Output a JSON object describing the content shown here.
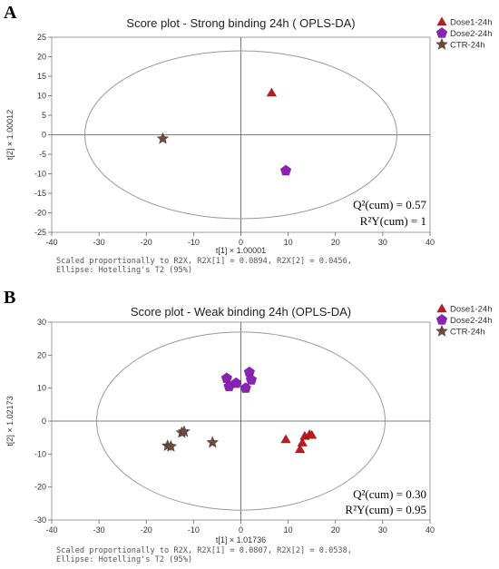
{
  "colors": {
    "dose1": "#c0191f",
    "dose2": "#8b22b8",
    "ctr": "#6b4b3e",
    "ellipse": "#9a9a9a",
    "zeroline": "#555555"
  },
  "chart_data": [
    {
      "type": "scatter",
      "panel": "A",
      "title": "Score plot - Strong binding 24h ( OPLS-DA)",
      "xlabel": "t[1] × 1.00001",
      "ylabel": "t[2] × 1.00012",
      "xlim": [
        -40,
        40
      ],
      "ylim": [
        -25,
        25
      ],
      "xticks": [
        -40,
        -30,
        -20,
        -10,
        0,
        10,
        20,
        30,
        40
      ],
      "yticks": [
        -25,
        -20,
        -15,
        -10,
        -5,
        0,
        5,
        10,
        15,
        20,
        25
      ],
      "grid": false,
      "legend_position": "top-right",
      "ellipse": {
        "cx": 0,
        "cy": 0,
        "rx": 33,
        "ry": 21.5,
        "label": "Ellipse: Hotelling's T2 (95%)"
      },
      "caption_lines": [
        "Scaled proportionally to R2X, R2X[1] = 0.0894, R2X[2] = 0.0456,",
        "Ellipse: Hotelling's T2 (95%)"
      ],
      "stats": [
        "Q²(cum) = 0.57",
        "R²Y(cum) = 1"
      ],
      "series": [
        {
          "name": "Dose1-24h",
          "marker": "triangle",
          "color_key": "dose1",
          "points": [
            [
              6.5,
              10.8
            ]
          ]
        },
        {
          "name": "Dose2-24h",
          "marker": "pentagon",
          "color_key": "dose2",
          "points": [
            [
              9.5,
              -9.2
            ]
          ]
        },
        {
          "name": "CTR-24h",
          "marker": "star",
          "color_key": "ctr",
          "points": [
            [
              -16.5,
              -1.0
            ]
          ]
        }
      ]
    },
    {
      "type": "scatter",
      "panel": "B",
      "title": "Score plot - Weak binding 24h (OPLS-DA)",
      "xlabel": "t[1] × 1.01736",
      "ylabel": "t[2] × 1.02173",
      "xlim": [
        -40,
        40
      ],
      "ylim": [
        -30,
        30
      ],
      "xticks": [
        -40,
        -30,
        -20,
        -10,
        0,
        10,
        20,
        30,
        40
      ],
      "yticks": [
        -30,
        -20,
        -10,
        0,
        10,
        20,
        30
      ],
      "grid": false,
      "legend_position": "top-right",
      "ellipse": {
        "cx": 0,
        "cy": 0,
        "rx": 30.5,
        "ry": 27,
        "label": "Ellipse: Hotelling's T2 (95%)"
      },
      "caption_lines": [
        "Scaled proportionally to R2X, R2X[1] = 0.0807, R2X[2] = 0.0538,",
        "Ellipse: Hotelling's T2 (95%)"
      ],
      "stats": [
        "Q²(cum) = 0.30",
        "R²Y(cum) = 0.95"
      ],
      "series": [
        {
          "name": "Dose1-24h",
          "marker": "triangle",
          "color_key": "dose1",
          "points": [
            [
              9.5,
              -5.5
            ],
            [
              12.5,
              -8.5
            ],
            [
              13.0,
              -6.5
            ],
            [
              13.5,
              -4.5
            ],
            [
              14.5,
              -4.0
            ],
            [
              15.0,
              -4.2
            ]
          ]
        },
        {
          "name": "Dose2-24h",
          "marker": "pentagon",
          "color_key": "dose2",
          "points": [
            [
              -3.0,
              13.0
            ],
            [
              -2.5,
              10.5
            ],
            [
              -1.0,
              11.5
            ],
            [
              1.0,
              10.0
            ],
            [
              1.8,
              14.8
            ],
            [
              2.2,
              12.5
            ]
          ]
        },
        {
          "name": "CTR-24h",
          "marker": "star",
          "color_key": "ctr",
          "points": [
            [
              -15.5,
              -7.5
            ],
            [
              -14.8,
              -7.7
            ],
            [
              -12.5,
              -3.5
            ],
            [
              -12.0,
              -3.2
            ],
            [
              -6.0,
              -6.5
            ]
          ]
        }
      ]
    }
  ]
}
